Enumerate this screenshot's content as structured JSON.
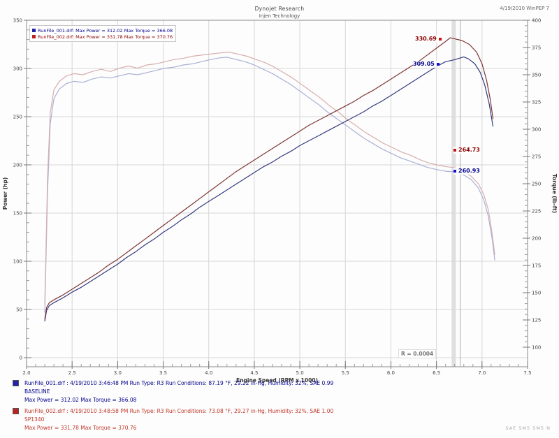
{
  "header": {
    "title_line1": "Dynojet Research",
    "title_line2": "Injen Technology",
    "top_right": "4/19/2010  WinPEP 7",
    "footer_right": "SAE  SM5  SM5  N"
  },
  "plot_legend": {
    "rows": [
      {
        "series": "baseline",
        "color": "#2222aa",
        "text": "RunFile_001.drf:  Max Power = 312.02    Max Torque = 366.08"
      },
      {
        "series": "sp1340",
        "color": "#bb2222",
        "text": "RunFile_002.drf:  Max Power = 331.78    Max Torque = 370.76"
      }
    ]
  },
  "annotations": {
    "r_value": "R = 0.0004",
    "cursor_labels": {
      "red_power": "330.69",
      "blue_power": "309.05",
      "red_torque": "264.73",
      "blue_torque": "260.93"
    }
  },
  "bottom_legend": [
    {
      "color": "#2222aa",
      "line1": "RunFile_001.drf :  4/19/2010 3:46:48 PM   Run Type: R3   Run Conditions: 87.19 °F, 29.22 in-Hg,  Humidity:  32%, SAE 0.99",
      "line2": "BASELINE",
      "line3": "Max Power = 312.02   Max Torque = 366.08"
    },
    {
      "color": "#bb2222",
      "line1": "RunFile_002.drf :  4/19/2010 3:48:58 PM   Run Type: R3   Run Conditions: 73.08 °F, 29.27 in-Hg,  Humidity:  32%, SAE 1.00",
      "line2": "SP1340",
      "line3": "Max Power = 331.78   Max Torque = 370.76"
    }
  ],
  "chart_data": {
    "type": "line",
    "title": "",
    "xlabel": "Engine Speed (RPM x 1000)",
    "ylabel_left": "Power (hp)",
    "ylabel_right": "Torque (lb-ft)",
    "xlim": [
      2.0,
      7.5
    ],
    "ylim_left": [
      0,
      350
    ],
    "ylim_right": [
      100,
      400
    ],
    "x_ticks": [
      "2.0",
      "2.5",
      "3.0",
      "3.5",
      "4.0",
      "4.5",
      "5.0",
      "5.5",
      "6.0",
      "6.5",
      "7.0",
      "7.5"
    ],
    "left_ticks": [
      "350",
      "300",
      "250",
      "200",
      "150",
      "100",
      "50",
      "0"
    ],
    "right_ticks": [
      "400",
      "375",
      "350",
      "325",
      "300",
      "275",
      "250",
      "225",
      "200",
      "175",
      "150",
      "125",
      "100"
    ],
    "x_minor_step": 0.1,
    "left_minor_step": 10,
    "right_minor_step": 5,
    "grid": true,
    "legend_position": "top-left",
    "cursor": {
      "band_rpm": 6.69,
      "line_rpm": 6.76
    },
    "series": [
      {
        "name": "BASELINE torque",
        "axis": "right",
        "color": "#aab0d6",
        "width": 1.2,
        "points": [
          [
            2.2,
            132
          ],
          [
            2.23,
            242
          ],
          [
            2.26,
            305
          ],
          [
            2.3,
            328
          ],
          [
            2.36,
            337
          ],
          [
            2.44,
            342
          ],
          [
            2.52,
            344
          ],
          [
            2.62,
            343
          ],
          [
            2.72,
            346
          ],
          [
            2.82,
            348
          ],
          [
            2.92,
            347
          ],
          [
            3.02,
            349
          ],
          [
            3.12,
            351
          ],
          [
            3.22,
            350
          ],
          [
            3.32,
            352
          ],
          [
            3.42,
            354
          ],
          [
            3.52,
            356
          ],
          [
            3.62,
            357
          ],
          [
            3.72,
            359
          ],
          [
            3.82,
            360
          ],
          [
            3.92,
            362
          ],
          [
            4.02,
            364
          ],
          [
            4.12,
            365.5
          ],
          [
            4.2,
            366.1
          ],
          [
            4.3,
            364
          ],
          [
            4.4,
            362
          ],
          [
            4.5,
            359
          ],
          [
            4.6,
            355
          ],
          [
            4.7,
            351
          ],
          [
            4.8,
            346
          ],
          [
            4.9,
            341
          ],
          [
            5.0,
            335
          ],
          [
            5.1,
            329
          ],
          [
            5.2,
            323
          ],
          [
            5.3,
            316
          ],
          [
            5.4,
            310
          ],
          [
            5.5,
            304
          ],
          [
            5.6,
            298
          ],
          [
            5.7,
            292
          ],
          [
            5.8,
            287
          ],
          [
            5.9,
            282
          ],
          [
            6.0,
            278
          ],
          [
            6.1,
            274
          ],
          [
            6.2,
            271
          ],
          [
            6.3,
            268
          ],
          [
            6.4,
            265
          ],
          [
            6.5,
            263
          ],
          [
            6.6,
            261.5
          ],
          [
            6.7,
            260.9
          ],
          [
            6.8,
            258
          ],
          [
            6.88,
            254
          ],
          [
            6.96,
            246
          ],
          [
            7.02,
            235
          ],
          [
            7.07,
            220
          ],
          [
            7.11,
            200
          ],
          [
            7.14,
            180
          ]
        ]
      },
      {
        "name": "SP1340 torque",
        "axis": "right",
        "color": "#d8aeae",
        "width": 1.2,
        "points": [
          [
            2.2,
            140
          ],
          [
            2.23,
            255
          ],
          [
            2.26,
            315
          ],
          [
            2.3,
            336
          ],
          [
            2.36,
            344
          ],
          [
            2.44,
            349
          ],
          [
            2.52,
            351
          ],
          [
            2.62,
            350
          ],
          [
            2.72,
            353
          ],
          [
            2.82,
            355
          ],
          [
            2.92,
            353
          ],
          [
            3.02,
            356
          ],
          [
            3.12,
            358
          ],
          [
            3.22,
            356
          ],
          [
            3.32,
            359
          ],
          [
            3.42,
            360
          ],
          [
            3.52,
            362
          ],
          [
            3.62,
            364
          ],
          [
            3.72,
            365
          ],
          [
            3.82,
            367
          ],
          [
            3.92,
            368
          ],
          [
            4.02,
            369
          ],
          [
            4.12,
            370
          ],
          [
            4.22,
            370.8
          ],
          [
            4.32,
            369
          ],
          [
            4.42,
            367
          ],
          [
            4.52,
            364
          ],
          [
            4.62,
            361
          ],
          [
            4.72,
            357
          ],
          [
            4.82,
            352
          ],
          [
            4.92,
            347
          ],
          [
            5.02,
            341
          ],
          [
            5.12,
            335
          ],
          [
            5.22,
            329
          ],
          [
            5.32,
            322
          ],
          [
            5.42,
            316
          ],
          [
            5.52,
            309
          ],
          [
            5.62,
            303
          ],
          [
            5.72,
            297
          ],
          [
            5.82,
            292
          ],
          [
            5.92,
            287
          ],
          [
            6.02,
            283
          ],
          [
            6.12,
            279
          ],
          [
            6.22,
            276
          ],
          [
            6.32,
            272
          ],
          [
            6.42,
            269
          ],
          [
            6.52,
            267
          ],
          [
            6.62,
            265.5
          ],
          [
            6.7,
            264.7
          ],
          [
            6.8,
            261
          ],
          [
            6.88,
            257
          ],
          [
            6.96,
            250
          ],
          [
            7.02,
            240
          ],
          [
            7.07,
            226
          ],
          [
            7.11,
            205
          ],
          [
            7.14,
            185
          ]
        ]
      },
      {
        "name": "BASELINE power",
        "axis": "left",
        "color": "#343a7e",
        "width": 1.2,
        "points": [
          [
            2.2,
            38
          ],
          [
            2.22,
            49
          ],
          [
            2.25,
            54
          ],
          [
            2.3,
            57
          ],
          [
            2.4,
            62
          ],
          [
            2.5,
            68
          ],
          [
            2.6,
            73
          ],
          [
            2.7,
            79
          ],
          [
            2.8,
            85
          ],
          [
            2.9,
            91
          ],
          [
            3.0,
            97
          ],
          [
            3.1,
            104
          ],
          [
            3.2,
            110
          ],
          [
            3.3,
            117
          ],
          [
            3.4,
            123
          ],
          [
            3.5,
            130
          ],
          [
            3.6,
            136
          ],
          [
            3.7,
            143
          ],
          [
            3.8,
            149
          ],
          [
            3.9,
            156
          ],
          [
            4.0,
            162
          ],
          [
            4.1,
            168
          ],
          [
            4.2,
            174
          ],
          [
            4.3,
            180
          ],
          [
            4.4,
            186
          ],
          [
            4.5,
            192
          ],
          [
            4.6,
            198
          ],
          [
            4.7,
            203
          ],
          [
            4.8,
            209
          ],
          [
            4.9,
            214
          ],
          [
            5.0,
            220
          ],
          [
            5.1,
            225
          ],
          [
            5.2,
            230
          ],
          [
            5.3,
            235
          ],
          [
            5.4,
            240
          ],
          [
            5.5,
            245
          ],
          [
            5.6,
            250
          ],
          [
            5.7,
            255
          ],
          [
            5.8,
            261
          ],
          [
            5.9,
            266
          ],
          [
            6.0,
            272
          ],
          [
            6.1,
            278
          ],
          [
            6.2,
            284
          ],
          [
            6.3,
            290
          ],
          [
            6.4,
            296
          ],
          [
            6.5,
            302
          ],
          [
            6.6,
            307
          ],
          [
            6.7,
            309.1
          ],
          [
            6.8,
            312.0
          ],
          [
            6.85,
            310
          ],
          [
            6.92,
            305
          ],
          [
            6.98,
            296
          ],
          [
            7.03,
            283
          ],
          [
            7.08,
            263
          ],
          [
            7.12,
            240
          ]
        ]
      },
      {
        "name": "SP1340 power",
        "axis": "left",
        "color": "#7e3434",
        "width": 1.2,
        "points": [
          [
            2.2,
            40
          ],
          [
            2.22,
            52
          ],
          [
            2.25,
            57
          ],
          [
            2.3,
            60
          ],
          [
            2.4,
            65
          ],
          [
            2.5,
            71
          ],
          [
            2.6,
            77
          ],
          [
            2.7,
            83
          ],
          [
            2.8,
            89
          ],
          [
            2.9,
            96
          ],
          [
            3.0,
            102
          ],
          [
            3.1,
            109
          ],
          [
            3.2,
            116
          ],
          [
            3.3,
            123
          ],
          [
            3.4,
            130
          ],
          [
            3.5,
            137
          ],
          [
            3.6,
            144
          ],
          [
            3.7,
            151
          ],
          [
            3.8,
            158
          ],
          [
            3.9,
            165
          ],
          [
            4.0,
            172
          ],
          [
            4.1,
            179
          ],
          [
            4.2,
            186
          ],
          [
            4.3,
            193
          ],
          [
            4.4,
            199
          ],
          [
            4.5,
            205
          ],
          [
            4.6,
            211
          ],
          [
            4.7,
            217
          ],
          [
            4.8,
            223
          ],
          [
            4.9,
            229
          ],
          [
            5.0,
            235
          ],
          [
            5.1,
            241
          ],
          [
            5.2,
            246
          ],
          [
            5.3,
            251
          ],
          [
            5.4,
            256
          ],
          [
            5.5,
            261
          ],
          [
            5.6,
            266
          ],
          [
            5.7,
            272
          ],
          [
            5.8,
            277
          ],
          [
            5.9,
            283
          ],
          [
            6.0,
            289
          ],
          [
            6.1,
            295
          ],
          [
            6.2,
            301
          ],
          [
            6.3,
            307
          ],
          [
            6.4,
            314
          ],
          [
            6.5,
            321
          ],
          [
            6.6,
            328
          ],
          [
            6.65,
            331.8
          ],
          [
            6.7,
            330.7
          ],
          [
            6.78,
            329
          ],
          [
            6.86,
            325
          ],
          [
            6.94,
            317
          ],
          [
            7.0,
            305
          ],
          [
            7.05,
            288
          ],
          [
            7.09,
            268
          ],
          [
            7.12,
            248
          ]
        ]
      }
    ]
  }
}
